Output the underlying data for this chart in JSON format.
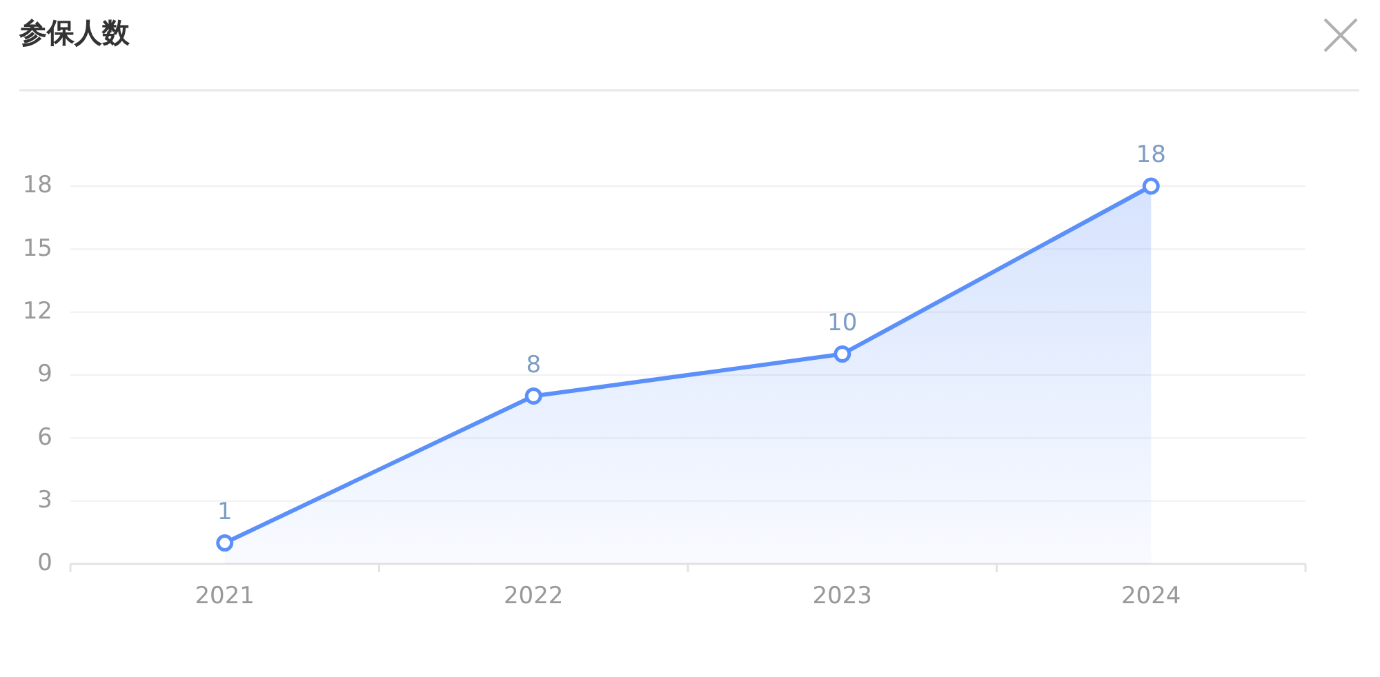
{
  "chart_data": {
    "type": "area",
    "title": "参保人数",
    "categories": [
      "2021",
      "2022",
      "2023",
      "2024"
    ],
    "values": [
      1,
      8,
      10,
      18
    ],
    "color": "#5b8ff9",
    "ylim": [
      0,
      18
    ],
    "yticks": [
      0,
      3,
      6,
      9,
      12,
      15,
      18
    ],
    "grid": "y",
    "marker": "circle",
    "data_labels": true
  }
}
